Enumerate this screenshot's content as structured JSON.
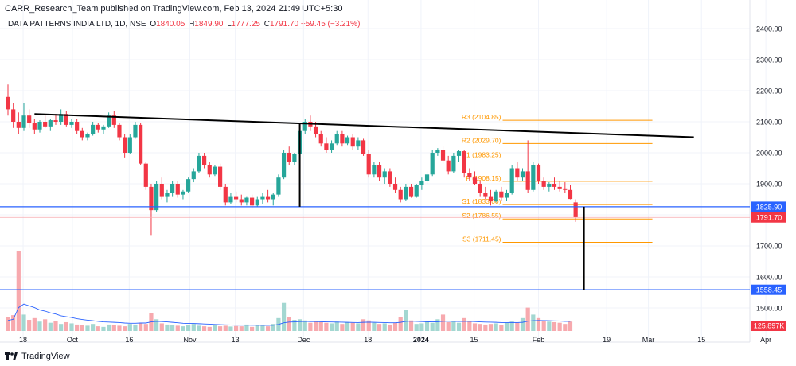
{
  "publisher": "CARR_Research_Team published on TradingView.com, Feb 13, 2024 21:49 UTC+5:30",
  "legend": {
    "symbol": "DATA PATTERNS INDIA LTD, 1D, NSE",
    "o_label": "O",
    "o": "1840.05",
    "h_label": "H",
    "h": "1849.90",
    "l_label": "L",
    "l": "1777.25",
    "c_label": "C",
    "c": "1791.70",
    "change": "−59.45 (−3.21%)"
  },
  "brand": "TradingView",
  "colors": {
    "up": "#26a69a",
    "down": "#f23645",
    "vol_up": "#a3d7d1",
    "vol_down": "#f7a9ae",
    "pivot": "#ff9800",
    "blue_line": "#2962ff",
    "ma": "#2962ff",
    "trend": "#000000"
  },
  "chart_data": {
    "type": "candlestick",
    "symbol": "DATA PATTERNS INDIA LTD",
    "interval": "1D",
    "exchange": "NSE",
    "ylim": [
      1480,
      2430
    ],
    "y_ticks": [
      "2400.00",
      "2300.00",
      "2200.00",
      "2100.00",
      "2000.00",
      "1900.00",
      "1800.00",
      "1700.00",
      "1600.00",
      "1500.00"
    ],
    "x_ticks": [
      "18",
      "Oct",
      "16",
      "Nov",
      "13",
      "Dec",
      "18",
      "2024",
      "15",
      "Feb",
      "19",
      "Mar",
      "15",
      "Apr"
    ],
    "bold_x_ticks": [
      "2024"
    ],
    "candles": [
      [
        2180,
        2220,
        2120,
        2140
      ],
      [
        2140,
        2160,
        2080,
        2100
      ],
      [
        2100,
        2130,
        2060,
        2080
      ],
      [
        2080,
        2160,
        2070,
        2120
      ],
      [
        2120,
        2140,
        2080,
        2095
      ],
      [
        2095,
        2110,
        2060,
        2075
      ],
      [
        2075,
        2105,
        2065,
        2100
      ],
      [
        2100,
        2120,
        2080,
        2085
      ],
      [
        2085,
        2110,
        2070,
        2105
      ],
      [
        2105,
        2125,
        2090,
        2100
      ],
      [
        2100,
        2140,
        2090,
        2125
      ],
      [
        2125,
        2135,
        2085,
        2090
      ],
      [
        2090,
        2110,
        2080,
        2100
      ],
      [
        2100,
        2110,
        2060,
        2070
      ],
      [
        2070,
        2080,
        2040,
        2050
      ],
      [
        2050,
        2065,
        2040,
        2060
      ],
      [
        2060,
        2100,
        2055,
        2090
      ],
      [
        2090,
        2095,
        2065,
        2075
      ],
      [
        2075,
        2090,
        2060,
        2085
      ],
      [
        2085,
        2130,
        2080,
        2120
      ],
      [
        2120,
        2135,
        2080,
        2090
      ],
      [
        2090,
        2095,
        2040,
        2050
      ],
      [
        2050,
        2060,
        1985,
        2000
      ],
      [
        2000,
        2060,
        1995,
        2050
      ],
      [
        2050,
        2100,
        2045,
        2090
      ],
      [
        2090,
        2095,
        1960,
        1965
      ],
      [
        1965,
        1970,
        1880,
        1890
      ],
      [
        1890,
        1900,
        1735,
        1815
      ],
      [
        1815,
        1910,
        1810,
        1900
      ],
      [
        1900,
        1920,
        1850,
        1860
      ],
      [
        1860,
        1880,
        1840,
        1870
      ],
      [
        1870,
        1910,
        1860,
        1900
      ],
      [
        1900,
        1910,
        1855,
        1865
      ],
      [
        1865,
        1880,
        1850,
        1875
      ],
      [
        1875,
        1920,
        1870,
        1915
      ],
      [
        1915,
        1950,
        1905,
        1940
      ],
      [
        1940,
        2000,
        1935,
        1990
      ],
      [
        1990,
        2000,
        1950,
        1960
      ],
      [
        1960,
        1970,
        1920,
        1930
      ],
      [
        1930,
        1960,
        1925,
        1955
      ],
      [
        1955,
        1965,
        1880,
        1890
      ],
      [
        1890,
        1900,
        1830,
        1840
      ],
      [
        1840,
        1870,
        1835,
        1860
      ],
      [
        1860,
        1875,
        1840,
        1850
      ],
      [
        1850,
        1865,
        1830,
        1840
      ],
      [
        1840,
        1860,
        1830,
        1855
      ],
      [
        1855,
        1865,
        1820,
        1830
      ],
      [
        1830,
        1860,
        1825,
        1850
      ],
      [
        1850,
        1870,
        1835,
        1860
      ],
      [
        1860,
        1880,
        1840,
        1850
      ],
      [
        1850,
        1870,
        1830,
        1865
      ],
      [
        1865,
        1930,
        1860,
        1920
      ],
      [
        1920,
        2010,
        1915,
        2000
      ],
      [
        2000,
        2020,
        1960,
        1970
      ],
      [
        1970,
        2000,
        1960,
        1995
      ],
      [
        1995,
        2080,
        1990,
        2070
      ],
      [
        2070,
        2110,
        2060,
        2100
      ],
      [
        2100,
        2120,
        2070,
        2085
      ],
      [
        2085,
        2100,
        2050,
        2060
      ],
      [
        2060,
        2070,
        2020,
        2030
      ],
      [
        2030,
        2050,
        2000,
        2010
      ],
      [
        2010,
        2040,
        2000,
        2030
      ],
      [
        2030,
        2070,
        2025,
        2060
      ],
      [
        2060,
        2070,
        2020,
        2030
      ],
      [
        2030,
        2055,
        2025,
        2050
      ],
      [
        2050,
        2060,
        2010,
        2020
      ],
      [
        2020,
        2050,
        2010,
        2040
      ],
      [
        2040,
        2045,
        1990,
        1995
      ],
      [
        1995,
        2010,
        1920,
        1930
      ],
      [
        1930,
        1970,
        1920,
        1960
      ],
      [
        1960,
        1970,
        1910,
        1920
      ],
      [
        1920,
        1950,
        1900,
        1940
      ],
      [
        1940,
        1950,
        1890,
        1900
      ],
      [
        1900,
        1920,
        1870,
        1880
      ],
      [
        1880,
        1890,
        1840,
        1850
      ],
      [
        1850,
        1900,
        1845,
        1890
      ],
      [
        1890,
        1900,
        1855,
        1860
      ],
      [
        1860,
        1900,
        1855,
        1895
      ],
      [
        1895,
        1920,
        1880,
        1910
      ],
      [
        1910,
        1940,
        1900,
        1930
      ],
      [
        1930,
        2010,
        1925,
        2000
      ],
      [
        2000,
        2015,
        1990,
        2010
      ],
      [
        2010,
        2020,
        1965,
        1975
      ],
      [
        1975,
        1990,
        1930,
        1940
      ],
      [
        1940,
        2000,
        1935,
        1990
      ],
      [
        1990,
        2010,
        1970,
        2005
      ],
      [
        2005,
        2010,
        1920,
        1935
      ],
      [
        1935,
        1950,
        1910,
        1920
      ],
      [
        1920,
        1940,
        1895,
        1900
      ],
      [
        1900,
        1910,
        1860,
        1870
      ],
      [
        1870,
        1890,
        1850,
        1860
      ],
      [
        1860,
        1880,
        1830,
        1845
      ],
      [
        1845,
        1880,
        1840,
        1875
      ],
      [
        1875,
        1890,
        1845,
        1855
      ],
      [
        1855,
        1880,
        1845,
        1870
      ],
      [
        1870,
        1960,
        1865,
        1950
      ],
      [
        1950,
        1970,
        1910,
        1920
      ],
      [
        1920,
        1950,
        1910,
        1940
      ],
      [
        1940,
        2040,
        1870,
        1880
      ],
      [
        1880,
        1970,
        1875,
        1960
      ],
      [
        1960,
        1965,
        1900,
        1910
      ],
      [
        1910,
        1920,
        1880,
        1890
      ],
      [
        1890,
        1905,
        1875,
        1900
      ],
      [
        1900,
        1920,
        1880,
        1890
      ],
      [
        1890,
        1910,
        1875,
        1885
      ],
      [
        1885,
        1905,
        1870,
        1880
      ],
      [
        1880,
        1895,
        1850,
        1851
      ],
      [
        1840.05,
        1849.9,
        1777.25,
        1791.7
      ]
    ],
    "volume": [
      120,
      135,
      680,
      140,
      95,
      110,
      80,
      100,
      70,
      85,
      60,
      75,
      65,
      55,
      50,
      45,
      60,
      40,
      35,
      55,
      50,
      45,
      40,
      60,
      55,
      70,
      60,
      150,
      100,
      65,
      55,
      50,
      45,
      40,
      50,
      60,
      45,
      40,
      35,
      50,
      40,
      45,
      38,
      42,
      40,
      55,
      35,
      50,
      45,
      40,
      60,
      110,
      240,
      120,
      95,
      100,
      90,
      70,
      80,
      75,
      70,
      65,
      80,
      60,
      75,
      70,
      65,
      100,
      90,
      70,
      60,
      65,
      55,
      70,
      120,
      180,
      90,
      60,
      65,
      80,
      70,
      100,
      140,
      75,
      80,
      70,
      110,
      85,
      65,
      60,
      55,
      60,
      65,
      50,
      70,
      80,
      70,
      110,
      200,
      140,
      110,
      90,
      80,
      75,
      70,
      60,
      80
    ],
    "volume_ma": [
      90,
      100,
      200,
      230,
      215,
      200,
      180,
      170,
      155,
      145,
      130,
      122,
      115,
      105,
      98,
      92,
      88,
      82,
      78,
      76,
      74,
      72,
      68,
      66,
      66,
      68,
      68,
      78,
      82,
      80,
      78,
      74,
      70,
      66,
      64,
      64,
      62,
      60,
      58,
      56,
      54,
      52,
      51,
      50,
      50,
      50,
      49,
      49,
      48,
      48,
      49,
      56,
      70,
      76,
      78,
      80,
      82,
      80,
      80,
      79,
      78,
      77,
      76,
      75,
      74,
      73,
      72,
      74,
      75,
      74,
      73,
      72,
      70,
      70,
      74,
      82,
      84,
      82,
      80,
      79,
      78,
      79,
      83,
      83,
      82,
      81,
      82,
      82,
      80,
      78,
      76,
      75,
      74,
      72,
      72,
      73,
      72,
      74,
      84,
      88,
      90,
      89,
      88,
      86,
      85,
      82,
      82
    ],
    "trendline": {
      "from": [
        "Sep 21",
        2125
      ],
      "to": [
        "Mar 13",
        2050
      ]
    },
    "pivots": [
      {
        "label": "R3 (2104.85)",
        "value": 2104.85
      },
      {
        "label": "R2 (2029.70)",
        "value": 2029.7
      },
      {
        "label": "R1 (1983.25)",
        "value": 1983.25
      },
      {
        "label": "P (1908.15)",
        "value": 1908.15
      },
      {
        "label": "S1 (1833.00)",
        "value": 1833.0
      },
      {
        "label": "S2 (1786.55)",
        "value": 1786.55
      },
      {
        "label": "S3 (1711.45)",
        "value": 1711.45
      }
    ],
    "horizontal_lines": [
      {
        "value": 1825.9,
        "label": "1825.90"
      },
      {
        "value": 1558.45,
        "label": "1558.45"
      }
    ],
    "vertical_segments": [
      {
        "date": "Nov 30",
        "from": 2095,
        "to": 1825.9
      },
      {
        "date": "Feb 13",
        "from": 1825.9,
        "to": 1558.45
      }
    ],
    "last_price_label": "1791.70",
    "volume_ma_label": "125.897K"
  }
}
